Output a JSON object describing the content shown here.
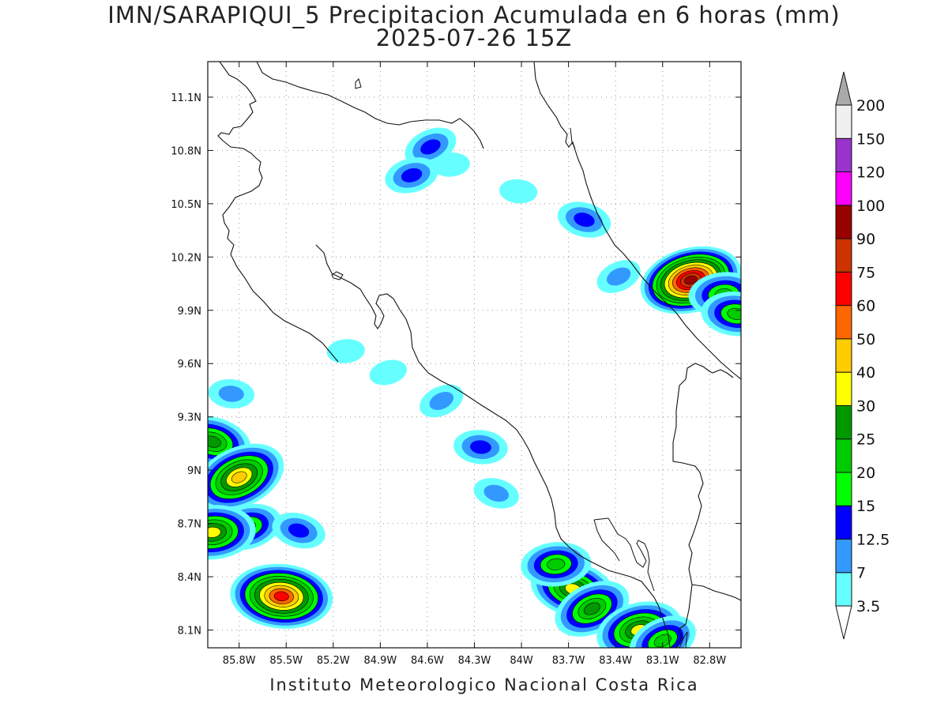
{
  "title": {
    "line1": "IMN/SARAPIQUI_5 Precipitacion Acumulada en 6 horas (mm)",
    "line2": "2025-07-26 15Z"
  },
  "footer": "Instituto Meteorologico Nacional Costa Rica",
  "map": {
    "lon_range": [
      -86.0,
      -82.6
    ],
    "lat_range": [
      8.0,
      11.3
    ],
    "x_ticks": [
      {
        "lon": -85.8,
        "label": "85.8W"
      },
      {
        "lon": -85.5,
        "label": "85.5W"
      },
      {
        "lon": -85.2,
        "label": "85.2W"
      },
      {
        "lon": -84.9,
        "label": "84.9W"
      },
      {
        "lon": -84.6,
        "label": "84.6W"
      },
      {
        "lon": -84.3,
        "label": "84.3W"
      },
      {
        "lon": -84.0,
        "label": "84W"
      },
      {
        "lon": -83.7,
        "label": "83.7W"
      },
      {
        "lon": -83.4,
        "label": "83.4W"
      },
      {
        "lon": -83.1,
        "label": "83.1W"
      },
      {
        "lon": -82.8,
        "label": "82.8W"
      }
    ],
    "y_ticks": [
      {
        "lat": 8.1,
        "label": "8.1N"
      },
      {
        "lat": 8.4,
        "label": "8.4N"
      },
      {
        "lat": 8.7,
        "label": "8.7N"
      },
      {
        "lat": 9.0,
        "label": "9N"
      },
      {
        "lat": 9.3,
        "label": "9.3N"
      },
      {
        "lat": 9.6,
        "label": "9.6N"
      },
      {
        "lat": 9.9,
        "label": "9.9N"
      },
      {
        "lat": 10.2,
        "label": "10.2N"
      },
      {
        "lat": 10.5,
        "label": "10.5N"
      },
      {
        "lat": 10.8,
        "label": "10.8N"
      },
      {
        "lat": 11.1,
        "label": "11.1N"
      }
    ],
    "grid": "dotted"
  },
  "colorbar": {
    "levels": [
      "3.5",
      "7",
      "12.5",
      "15",
      "20",
      "25",
      "30",
      "40",
      "50",
      "60",
      "75",
      "90",
      "100",
      "120",
      "150",
      "200"
    ],
    "colors": [
      "#66ffff",
      "#3399ff",
      "#0000ff",
      "#00ff00",
      "#00cc00",
      "#009900",
      "#ffff00",
      "#ffcc00",
      "#ff6600",
      "#ff0000",
      "#cc3300",
      "#990000",
      "#ff00ff",
      "#9933cc",
      "#f0f0f0",
      "#aaaaaa"
    ],
    "low_end_color": "#ffffff",
    "high_end_color": "#aaaaaa"
  },
  "precip_cells": [
    {
      "lon": -84.58,
      "lat": 10.82,
      "peak_mm": 13
    },
    {
      "lon": -84.7,
      "lat": 10.66,
      "peak_mm": 12.5
    },
    {
      "lon": -84.45,
      "lat": 10.72,
      "peak_mm": 5
    },
    {
      "lon": -84.02,
      "lat": 10.57,
      "peak_mm": 6
    },
    {
      "lon": -83.6,
      "lat": 10.41,
      "peak_mm": 12.5
    },
    {
      "lon": -83.38,
      "lat": 10.09,
      "peak_mm": 12
    },
    {
      "lon": -82.92,
      "lat": 10.07,
      "peak_mm": 95
    },
    {
      "lon": -82.71,
      "lat": 9.99,
      "peak_mm": 22
    },
    {
      "lon": -82.63,
      "lat": 9.88,
      "peak_mm": 22
    },
    {
      "lon": -85.97,
      "lat": 9.16,
      "peak_mm": 25
    },
    {
      "lon": -85.8,
      "lat": 8.96,
      "peak_mm": 45
    },
    {
      "lon": -85.75,
      "lat": 8.68,
      "peak_mm": 22
    },
    {
      "lon": -85.97,
      "lat": 8.65,
      "peak_mm": 35
    },
    {
      "lon": -85.53,
      "lat": 8.29,
      "peak_mm": 70
    },
    {
      "lon": -83.67,
      "lat": 8.33,
      "peak_mm": 30
    },
    {
      "lon": -83.55,
      "lat": 8.22,
      "peak_mm": 25
    },
    {
      "lon": -83.25,
      "lat": 8.1,
      "peak_mm": 35
    },
    {
      "lon": -83.78,
      "lat": 8.47,
      "peak_mm": 22
    },
    {
      "lon": -84.26,
      "lat": 9.13,
      "peak_mm": 12.5
    },
    {
      "lon": -84.16,
      "lat": 8.87,
      "peak_mm": 7
    },
    {
      "lon": -84.51,
      "lat": 9.39,
      "peak_mm": 8
    },
    {
      "lon": -84.85,
      "lat": 9.55,
      "peak_mm": 5
    },
    {
      "lon": -85.12,
      "lat": 9.67,
      "peak_mm": 6
    },
    {
      "lon": -85.85,
      "lat": 9.43,
      "peak_mm": 8
    },
    {
      "lon": -85.42,
      "lat": 8.66,
      "peak_mm": 12.5
    },
    {
      "lon": -83.1,
      "lat": 8.04,
      "peak_mm": 20
    }
  ]
}
